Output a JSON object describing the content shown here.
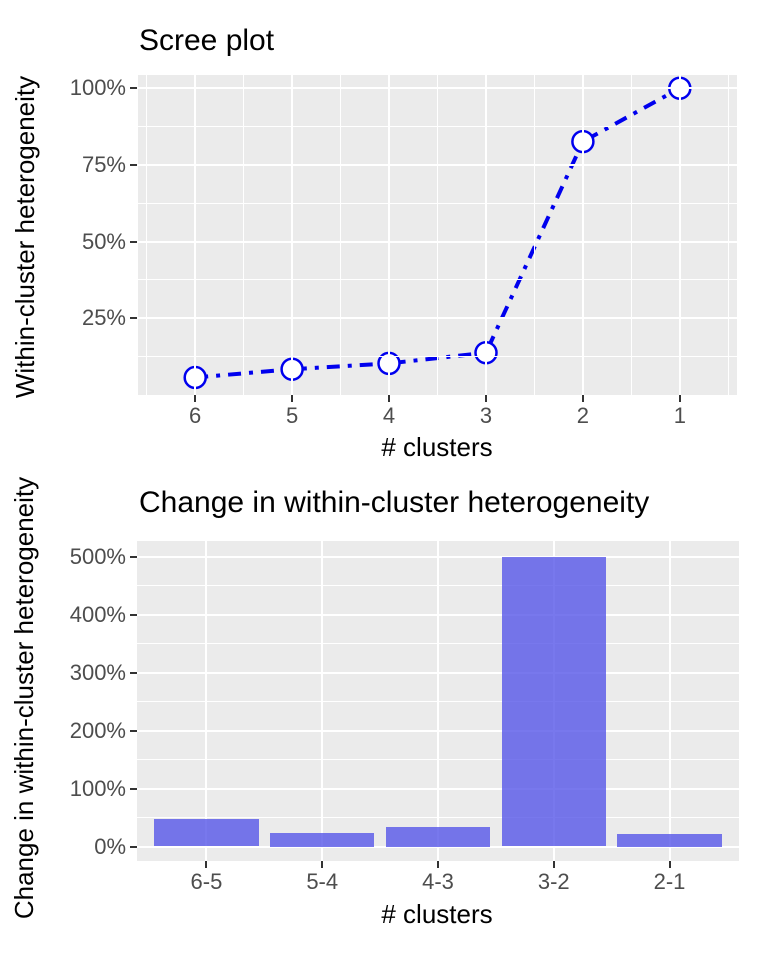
{
  "figure_style": {
    "background": "#FFFFFF",
    "panel_background": "#EBEBEB",
    "grid_color": "#FFFFFF",
    "tick_mark_color": "#333333",
    "tick_label_color": "#4D4D4D",
    "text_color": "#000000"
  },
  "chart_data": [
    {
      "type": "line",
      "title": "Scree plot",
      "xlabel": "# clusters",
      "ylabel": "Within-cluster heterogeneity",
      "x": [
        6,
        5,
        4,
        3,
        2,
        1
      ],
      "values_pct": [
        5.7,
        8.4,
        10.3,
        13.8,
        82.6,
        100
      ],
      "x_tick_labels": [
        "6",
        "5",
        "4",
        "3",
        "2",
        "1"
      ],
      "y_tick_values": [
        25,
        50,
        75,
        100
      ],
      "y_tick_labels": [
        "25%",
        "50%",
        "75%",
        "100%"
      ],
      "y_minor_values": [
        12.5,
        37.5,
        62.5,
        87.5
      ],
      "x_minor_values": [
        6.5,
        5.5,
        4.5,
        3.5,
        2.5,
        1.5,
        0.5
      ],
      "xlim_reversed": [
        6.59,
        0.41
      ],
      "ylim": [
        0,
        104.3
      ],
      "x_axis_reversed": true,
      "grid": true,
      "legend": "none",
      "line_color": "#0000EE",
      "line_style": "dash-dot",
      "line_width": 4,
      "marker": "open-circle",
      "marker_fill": "#FFFFFF",
      "marker_radius": 10.5
    },
    {
      "type": "bar",
      "title": "Change in within-cluster heterogeneity",
      "xlabel": "# clusters",
      "ylabel": "Change in within-cluster heterogeneity",
      "categories": [
        "6-5",
        "5-4",
        "4-3",
        "3-2",
        "2-1"
      ],
      "values_pct": [
        47,
        23,
        34,
        500,
        21
      ],
      "y_tick_values": [
        0,
        100,
        200,
        300,
        400,
        500
      ],
      "y_tick_labels": [
        "0%",
        "100%",
        "200%",
        "300%",
        "400%",
        "500%"
      ],
      "y_minor_values": [
        50,
        150,
        250,
        350,
        450
      ],
      "ylim": [
        -25,
        527
      ],
      "grid": true,
      "legend": "none",
      "bar_color": "#5656E8",
      "bar_opacity": 0.8
    }
  ]
}
